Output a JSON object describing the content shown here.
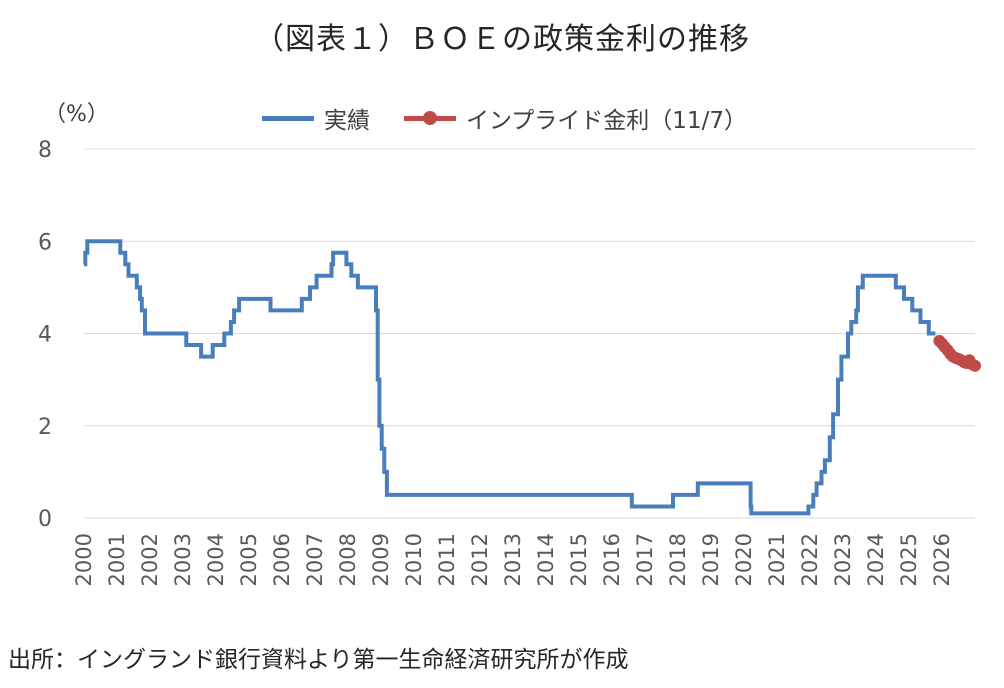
{
  "page": {
    "title": "（図表１）ＢＯＥの政策金利の推移",
    "unit_label": "（%）",
    "source": "出所：イングランド銀行資料より第一生命経済研究所が作成"
  },
  "colors": {
    "actual": "#4a7ebb",
    "implied": "#be4b48",
    "grid": "#d9d9d9",
    "axis_text": "#595959"
  },
  "chart_data": {
    "type": "line",
    "title": "（図表１）ＢＯＥの政策金利の推移",
    "ylabel": "（%）",
    "xlabel": "",
    "ylim": [
      0,
      8
    ],
    "yticks": [
      0,
      2,
      4,
      6,
      8
    ],
    "xlim": [
      2000,
      2027
    ],
    "xticks": [
      "2000",
      "2001",
      "2002",
      "2003",
      "2004",
      "2005",
      "2006",
      "2007",
      "2008",
      "2009",
      "2010",
      "2011",
      "2012",
      "2013",
      "2014",
      "2015",
      "2016",
      "2017",
      "2018",
      "2019",
      "2020",
      "2021",
      "2022",
      "2023",
      "2024",
      "2025",
      "2026"
    ],
    "grid": true,
    "legend_position": "top",
    "series": [
      {
        "name": "実績",
        "style": "step-line",
        "points": [
          [
            2000.0,
            5.5
          ],
          [
            2000.04,
            5.75
          ],
          [
            2000.1,
            6.0
          ],
          [
            2001.1,
            5.75
          ],
          [
            2001.25,
            5.5
          ],
          [
            2001.35,
            5.25
          ],
          [
            2001.6,
            5.0
          ],
          [
            2001.7,
            4.75
          ],
          [
            2001.75,
            4.5
          ],
          [
            2001.85,
            4.0
          ],
          [
            2003.1,
            3.75
          ],
          [
            2003.55,
            3.5
          ],
          [
            2003.9,
            3.75
          ],
          [
            2004.25,
            4.0
          ],
          [
            2004.45,
            4.25
          ],
          [
            2004.55,
            4.5
          ],
          [
            2004.7,
            4.75
          ],
          [
            2005.65,
            4.5
          ],
          [
            2006.6,
            4.75
          ],
          [
            2006.85,
            5.0
          ],
          [
            2007.05,
            5.25
          ],
          [
            2007.5,
            5.5
          ],
          [
            2007.55,
            5.75
          ],
          [
            2007.95,
            5.5
          ],
          [
            2008.1,
            5.25
          ],
          [
            2008.3,
            5.0
          ],
          [
            2008.85,
            4.5
          ],
          [
            2008.9,
            3.0
          ],
          [
            2008.95,
            2.0
          ],
          [
            2009.02,
            1.5
          ],
          [
            2009.1,
            1.0
          ],
          [
            2009.18,
            0.5
          ],
          [
            2016.6,
            0.25
          ],
          [
            2017.85,
            0.5
          ],
          [
            2018.6,
            0.75
          ],
          [
            2020.2,
            0.25
          ],
          [
            2020.22,
            0.1
          ],
          [
            2021.95,
            0.25
          ],
          [
            2022.1,
            0.5
          ],
          [
            2022.2,
            0.75
          ],
          [
            2022.35,
            1.0
          ],
          [
            2022.45,
            1.25
          ],
          [
            2022.6,
            1.75
          ],
          [
            2022.7,
            2.25
          ],
          [
            2022.85,
            3.0
          ],
          [
            2022.95,
            3.5
          ],
          [
            2023.15,
            4.0
          ],
          [
            2023.25,
            4.25
          ],
          [
            2023.4,
            4.5
          ],
          [
            2023.45,
            5.0
          ],
          [
            2023.6,
            5.25
          ],
          [
            2024.6,
            5.0
          ],
          [
            2024.85,
            4.75
          ],
          [
            2025.1,
            4.5
          ],
          [
            2025.35,
            4.25
          ],
          [
            2025.6,
            4.0
          ],
          [
            2025.8,
            4.0
          ]
        ]
      },
      {
        "name": "インプライド金利（11/7）",
        "style": "line-markers",
        "points": [
          [
            2025.92,
            3.84
          ],
          [
            2026.0,
            3.78
          ],
          [
            2026.08,
            3.71
          ],
          [
            2026.17,
            3.64
          ],
          [
            2026.25,
            3.56
          ],
          [
            2026.33,
            3.5
          ],
          [
            2026.42,
            3.47
          ],
          [
            2026.5,
            3.45
          ],
          [
            2026.58,
            3.42
          ],
          [
            2026.67,
            3.38
          ],
          [
            2026.75,
            3.36
          ],
          [
            2026.83,
            3.42
          ],
          [
            2026.92,
            3.33
          ],
          [
            2027.0,
            3.3
          ]
        ]
      }
    ]
  }
}
